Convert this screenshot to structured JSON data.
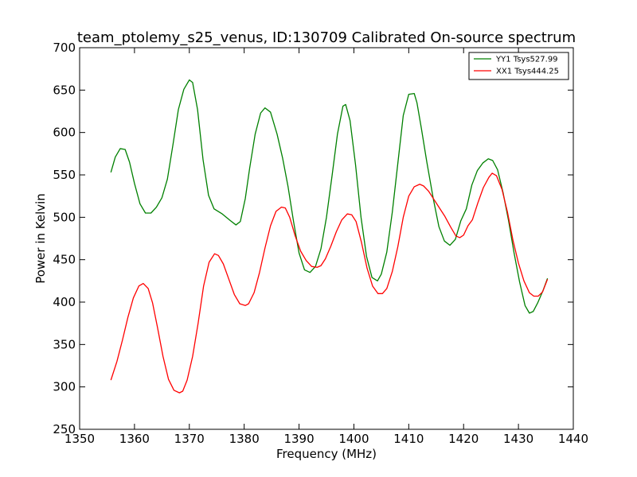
{
  "chart_data": {
    "type": "line",
    "title": "team_ptolemy_s25_venus, ID:130709 Calibrated On-source spectrum",
    "xlabel": "Frequency (MHz)",
    "ylabel": "Power in Kelvin",
    "xlim": [
      1350,
      1440
    ],
    "ylim": [
      250,
      700
    ],
    "xticks": [
      1350,
      1360,
      1370,
      1380,
      1390,
      1400,
      1410,
      1420,
      1430,
      1440
    ],
    "yticks": [
      250,
      300,
      350,
      400,
      450,
      500,
      550,
      600,
      650,
      700
    ],
    "legend_position": "top-right",
    "grid": false,
    "series": [
      {
        "name": "YY1 Tsys527.99",
        "color": "#008000",
        "x": [
          1355.7,
          1356.5,
          1357.4,
          1358.3,
          1359.1,
          1360.0,
          1361.0,
          1362.0,
          1363.0,
          1364.0,
          1365.0,
          1366.0,
          1367.0,
          1368.0,
          1369.0,
          1370.0,
          1370.6,
          1371.5,
          1372.5,
          1373.5,
          1374.5,
          1376.0,
          1377.5,
          1378.5,
          1379.3,
          1380.2,
          1381.0,
          1382.0,
          1383.0,
          1383.8,
          1384.8,
          1386.0,
          1387.0,
          1388.0,
          1389.0,
          1390.0,
          1391.0,
          1392.0,
          1393.0,
          1394.0,
          1395.0,
          1396.0,
          1397.0,
          1398.0,
          1398.5,
          1399.3,
          1400.3,
          1401.3,
          1402.3,
          1403.3,
          1404.3,
          1405.0,
          1406.0,
          1407.0,
          1408.0,
          1409.0,
          1410.0,
          1411.0,
          1411.5,
          1412.3,
          1413.3,
          1414.5,
          1415.5,
          1416.5,
          1417.5,
          1418.5,
          1419.5,
          1420.5,
          1421.5,
          1422.5,
          1423.5,
          1424.5,
          1425.3,
          1426.2,
          1427.2,
          1428.2,
          1429.2,
          1430.2,
          1431.2,
          1432.0,
          1432.7,
          1433.5,
          1434.5,
          1435.3
        ],
        "y": [
          553,
          571,
          581,
          580,
          565,
          540,
          516,
          505,
          505,
          512,
          523,
          545,
          585,
          627,
          651,
          662,
          659,
          627,
          568,
          526,
          510,
          504,
          496,
          491,
          495,
          522,
          558,
          598,
          623,
          629,
          624,
          598,
          570,
          536,
          495,
          458,
          438,
          435,
          442,
          463,
          500,
          548,
          598,
          631,
          633,
          614,
          562,
          500,
          454,
          429,
          425,
          433,
          459,
          506,
          563,
          620,
          645,
          646,
          635,
          605,
          565,
          521,
          489,
          472,
          467,
          474,
          496,
          510,
          538,
          555,
          564,
          569,
          567,
          556,
          529,
          496,
          458,
          424,
          396,
          387,
          389,
          399,
          414,
          428
        ]
      },
      {
        "name": "XX1 Tsys444.25",
        "color": "#ff0000",
        "x": [
          1355.7,
          1356.8,
          1357.8,
          1358.8,
          1359.8,
          1360.8,
          1361.6,
          1362.5,
          1363.3,
          1364.2,
          1365.2,
          1366.2,
          1367.2,
          1368.2,
          1368.8,
          1369.6,
          1370.6,
          1371.6,
          1372.6,
          1373.6,
          1374.6,
          1375.3,
          1376.2,
          1377.2,
          1378.2,
          1379.2,
          1380.2,
          1380.8,
          1381.8,
          1382.8,
          1383.8,
          1384.8,
          1385.8,
          1386.8,
          1387.5,
          1388.3,
          1389.3,
          1390.3,
          1391.3,
          1392.3,
          1393.3,
          1394.0,
          1394.8,
          1395.8,
          1396.8,
          1397.8,
          1398.8,
          1399.6,
          1400.4,
          1401.4,
          1402.4,
          1403.4,
          1404.4,
          1405.2,
          1406.0,
          1407.0,
          1408.0,
          1409.0,
          1410.0,
          1411.0,
          1412.0,
          1412.7,
          1413.6,
          1414.6,
          1415.6,
          1416.6,
          1417.6,
          1418.6,
          1419.3,
          1420.0,
          1420.8,
          1421.6,
          1422.6,
          1423.6,
          1424.6,
          1425.2,
          1426.0,
          1427.0,
          1428.0,
          1429.0,
          1430.0,
          1431.0,
          1432.0,
          1432.8,
          1433.6,
          1434.4,
          1435.3
        ],
        "y": [
          308,
          330,
          355,
          382,
          405,
          419,
          422,
          416,
          399,
          370,
          336,
          309,
          296,
          293,
          295,
          308,
          336,
          375,
          419,
          447,
          457,
          455,
          445,
          427,
          409,
          398,
          396,
          398,
          411,
          435,
          464,
          490,
          507,
          512,
          511,
          500,
          478,
          460,
          449,
          442,
          441,
          443,
          451,
          466,
          483,
          497,
          504,
          503,
          495,
          470,
          440,
          419,
          410,
          410,
          416,
          436,
          465,
          500,
          525,
          536,
          539,
          537,
          531,
          521,
          511,
          501,
          489,
          478,
          476,
          479,
          490,
          497,
          517,
          535,
          547,
          552,
          549,
          533,
          506,
          473,
          446,
          425,
          411,
          407,
          407,
          412,
          427
        ]
      }
    ]
  }
}
